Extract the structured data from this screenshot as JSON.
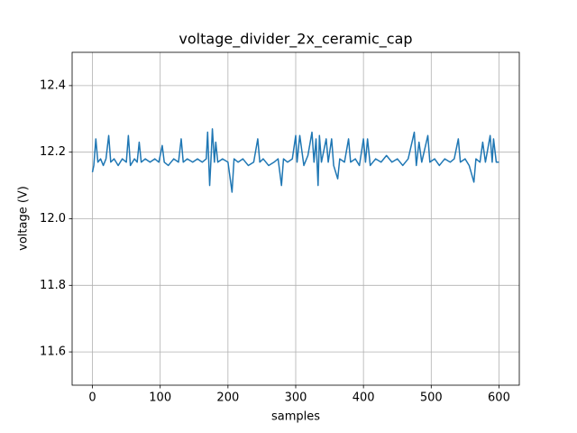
{
  "chart_data": {
    "type": "line",
    "title": "voltage_divider_2x_ceramic_cap",
    "x_label": "samples",
    "y_label": "voltage (V)",
    "x": [
      0,
      2,
      5,
      8,
      12,
      16,
      20,
      24,
      27,
      32,
      38,
      44,
      50,
      53,
      56,
      62,
      66,
      69,
      72,
      78,
      85,
      92,
      98,
      103,
      106,
      112,
      120,
      127,
      131,
      134,
      140,
      148,
      155,
      162,
      168,
      170,
      173,
      175,
      177,
      180,
      182,
      185,
      192,
      200,
      206,
      209,
      215,
      222,
      230,
      238,
      244,
      247,
      252,
      260,
      268,
      274,
      279,
      282,
      288,
      295,
      300,
      302,
      306,
      312,
      318,
      324,
      327,
      330,
      333,
      335,
      338,
      345,
      348,
      353,
      356,
      362,
      365,
      372,
      378,
      381,
      388,
      394,
      400,
      403,
      406,
      410,
      418,
      426,
      434,
      442,
      450,
      458,
      466,
      475,
      478,
      482,
      486,
      495,
      498,
      505,
      512,
      520,
      528,
      534,
      540,
      543,
      550,
      556,
      563,
      566,
      572,
      576,
      580,
      587,
      590,
      592,
      596,
      600
    ],
    "series": [
      {
        "name": "voltage",
        "color": "#1f77b4",
        "values": [
          12.14,
          12.16,
          12.24,
          12.17,
          12.18,
          12.16,
          12.18,
          12.25,
          12.17,
          12.18,
          12.16,
          12.18,
          12.17,
          12.25,
          12.16,
          12.18,
          12.17,
          12.23,
          12.17,
          12.18,
          12.17,
          12.18,
          12.17,
          12.22,
          12.17,
          12.16,
          12.18,
          12.17,
          12.24,
          12.17,
          12.18,
          12.17,
          12.18,
          12.17,
          12.18,
          12.26,
          12.1,
          12.18,
          12.27,
          12.17,
          12.23,
          12.17,
          12.18,
          12.17,
          12.08,
          12.18,
          12.17,
          12.18,
          12.16,
          12.17,
          12.24,
          12.17,
          12.18,
          12.16,
          12.17,
          12.18,
          12.1,
          12.18,
          12.17,
          12.18,
          12.25,
          12.17,
          12.25,
          12.16,
          12.19,
          12.26,
          12.17,
          12.24,
          12.1,
          12.25,
          12.17,
          12.24,
          12.17,
          12.24,
          12.16,
          12.12,
          12.18,
          12.17,
          12.24,
          12.17,
          12.18,
          12.16,
          12.24,
          12.17,
          12.24,
          12.16,
          12.18,
          12.17,
          12.19,
          12.17,
          12.18,
          12.16,
          12.18,
          12.26,
          12.16,
          12.23,
          12.17,
          12.25,
          12.17,
          12.18,
          12.16,
          12.18,
          12.17,
          12.18,
          12.24,
          12.17,
          12.18,
          12.16,
          12.11,
          12.18,
          12.17,
          12.23,
          12.17,
          12.25,
          12.17,
          12.24,
          12.17,
          12.17
        ]
      }
    ],
    "xlim": [
      -30,
      630
    ],
    "ylim": [
      11.5,
      12.5
    ],
    "xticks": [
      0,
      100,
      200,
      300,
      400,
      500,
      600
    ],
    "yticks": [
      11.6,
      11.8,
      {
        "value": 12,
        "label": "12.0"
      },
      12.2,
      12.4
    ],
    "grid": true
  }
}
